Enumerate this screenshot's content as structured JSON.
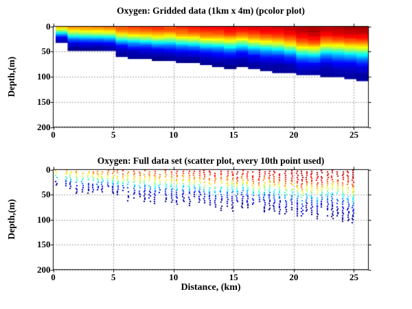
{
  "colors": {
    "background": "#ffffff",
    "axis": "#000000",
    "grid_dots": "#404040"
  },
  "chart_data": [
    {
      "type": "heatmap",
      "title": "Oxygen: Gridded data (1km x 4m) (pcolor plot)",
      "xlabel": "",
      "ylabel": "Depth,(m)",
      "xlim": [
        0,
        26.2
      ],
      "depth_axis_m": [
        0,
        200
      ],
      "depth_axis_reversed": true,
      "xticks": [
        0,
        5,
        10,
        15,
        20,
        25
      ],
      "yticks": [
        0,
        50,
        100,
        150,
        200
      ],
      "grid": "dotted",
      "legend": "none",
      "colormap": "jet",
      "cell_width_km": 1,
      "cell_height_m": 4,
      "first_column_x_km": 0.2,
      "columns": {
        "count": 26,
        "bottom_depth_m": [
          32,
          46,
          46,
          46,
          48,
          57,
          61,
          63,
          66,
          68,
          70,
          72,
          74,
          78,
          81,
          80,
          84,
          86,
          89,
          91,
          94,
          95,
          98,
          100,
          104,
          107
        ],
        "surface_value": [
          0.76,
          0.79,
          0.8,
          0.82,
          0.83,
          0.85,
          0.85,
          0.86,
          0.87,
          0.88,
          0.89,
          0.9,
          0.92,
          0.92,
          0.93,
          0.95,
          0.95,
          0.96,
          0.97,
          0.97,
          0.98,
          0.99,
          0.99,
          1.0,
          1.0,
          1.0
        ],
        "thermocline_depth_m": [
          14,
          20,
          20,
          20,
          21,
          25,
          27,
          28,
          29,
          30,
          31,
          32,
          33,
          35,
          36,
          33,
          38,
          39,
          40,
          43,
          48,
          50,
          44,
          45,
          47,
          48
        ]
      },
      "value_profile_model": "v(z) = surface_value / (1 + exp((z - thermocline_depth) / (0.12*bottom_depth + 2))); v=1 dark red (high O2 at surface), v=0 dark blue (low O2 at depth)"
    },
    {
      "type": "scatter",
      "title": "Oxygen: Full data set (scatter plot, every 10th point used)",
      "xlabel": "Distance, (km)",
      "ylabel": "Depth,(m)",
      "xlim": [
        0,
        26.2
      ],
      "depth_axis_m": [
        0,
        200
      ],
      "depth_axis_reversed": true,
      "xticks": [
        0,
        5,
        10,
        15,
        20,
        25
      ],
      "yticks": [
        0,
        50,
        100,
        150,
        200
      ],
      "grid": "dotted",
      "legend": "none",
      "colormap": "jet",
      "stations": {
        "first_station_x_km": 0.25,
        "profile_start_x_km": 1.08,
        "profile_end_x_km": 25.1,
        "mean_spacing_km": 0.44,
        "sample_depth_step_m": 3.6,
        "top_sample_depth_m": 3,
        "max_profile_depth_m": 105,
        "marker": "point",
        "marker_size_px": 2
      },
      "field_model": "same oxygen section as gridded plot: profile depths and jet colors follow columns arrays of chart 0 with per-station scatter/jitter"
    }
  ]
}
